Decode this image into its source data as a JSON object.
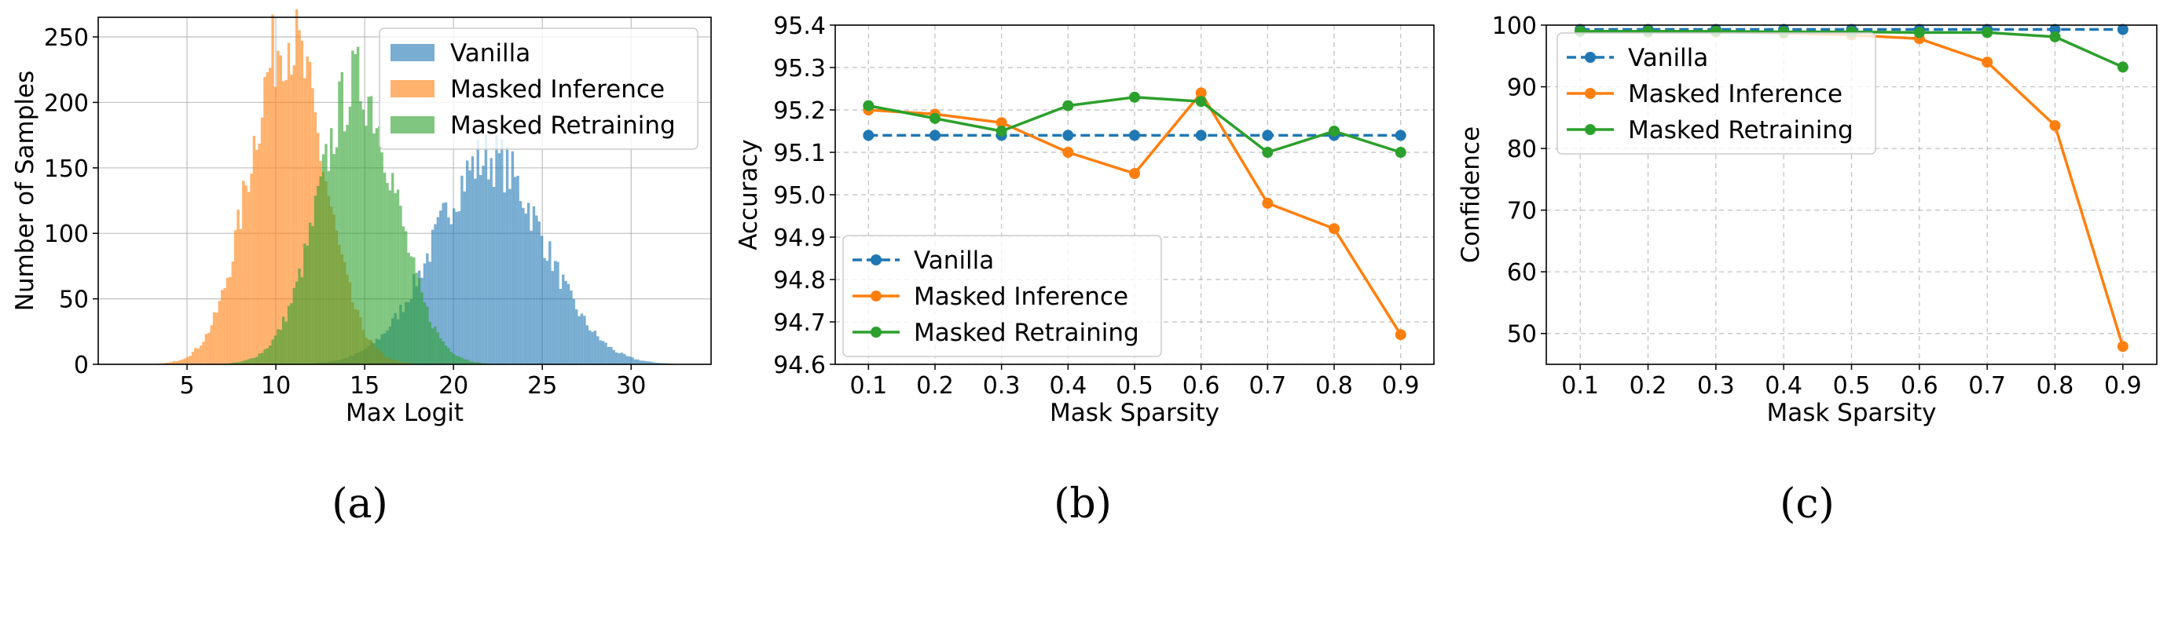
{
  "colors": {
    "blue": "#1f77b4",
    "orange": "#ff7f0e",
    "green": "#2ca02c",
    "grid": "#b0b0b0",
    "frame": "#000000"
  },
  "captions": [
    "(a)",
    "(b)",
    "(c)"
  ],
  "chart_data": [
    {
      "type": "histogram",
      "title": "",
      "xlabel": "Max Logit",
      "ylabel": "Number of Samples",
      "xlim": [
        0,
        34.5
      ],
      "ylim": [
        0,
        265
      ],
      "xticks": [
        5,
        10,
        15,
        20,
        25,
        30
      ],
      "yticks": [
        0,
        50,
        100,
        150,
        200,
        250
      ],
      "grid": true,
      "legend_position": "upper right",
      "bin_width": 0.15,
      "series": [
        {
          "name": "Vanilla",
          "color": "#1f77b4",
          "opacity": 0.6,
          "distribution": "approx-normal",
          "mean": 22.0,
          "std": 3.05,
          "peak": 158,
          "range": [
            4.5,
            33.0
          ]
        },
        {
          "name": "Masked Inference",
          "color": "#ff7f0e",
          "opacity": 0.6,
          "distribution": "approx-normal",
          "mean": 10.6,
          "std": 2.05,
          "peak": 252,
          "range": [
            1.5,
            18.5
          ]
        },
        {
          "name": "Masked Retraining",
          "color": "#2ca02c",
          "opacity": 0.6,
          "distribution": "approx-normal",
          "mean": 14.6,
          "std": 2.15,
          "peak": 215,
          "range": [
            3.0,
            25.0
          ]
        }
      ]
    },
    {
      "type": "line",
      "title": "",
      "xlabel": "Mask Sparsity",
      "ylabel": "Accuracy",
      "x": [
        0.1,
        0.2,
        0.3,
        0.4,
        0.5,
        0.6,
        0.7,
        0.8,
        0.9
      ],
      "xlim": [
        0.05,
        0.95
      ],
      "ylim": [
        94.6,
        95.4
      ],
      "yticks": [
        94.6,
        94.7,
        94.8,
        94.9,
        95.0,
        95.1,
        95.2,
        95.3,
        95.4
      ],
      "ytick_labels": [
        "94.6",
        "94.7",
        "94.8",
        "94.9",
        "95.0",
        "95.1",
        "95.2",
        "95.3",
        "95.4"
      ],
      "grid": true,
      "legend_position": "lower left",
      "series": [
        {
          "name": "Vanilla",
          "color": "#1f77b4",
          "dashed": true,
          "values": [
            95.14,
            95.14,
            95.14,
            95.14,
            95.14,
            95.14,
            95.14,
            95.14,
            95.14
          ]
        },
        {
          "name": "Masked Inference",
          "color": "#ff7f0e",
          "dashed": false,
          "values": [
            95.2,
            95.19,
            95.17,
            95.1,
            95.05,
            95.24,
            94.98,
            94.92,
            94.67
          ]
        },
        {
          "name": "Masked Retraining",
          "color": "#2ca02c",
          "dashed": false,
          "values": [
            95.21,
            95.18,
            95.15,
            95.21,
            95.23,
            95.22,
            95.1,
            95.15,
            95.1
          ]
        }
      ]
    },
    {
      "type": "line",
      "title": "",
      "xlabel": "Mask Sparsity",
      "ylabel": "Confidence",
      "x": [
        0.1,
        0.2,
        0.3,
        0.4,
        0.5,
        0.6,
        0.7,
        0.8,
        0.9
      ],
      "xlim": [
        0.05,
        0.95
      ],
      "ylim": [
        45,
        100
      ],
      "yticks": [
        50,
        60,
        70,
        80,
        90,
        100
      ],
      "ytick_labels": [
        "50",
        "60",
        "70",
        "80",
        "90",
        "100"
      ],
      "grid": true,
      "legend_position": "upper left",
      "series": [
        {
          "name": "Vanilla",
          "color": "#1f77b4",
          "dashed": true,
          "values": [
            99.3,
            99.3,
            99.3,
            99.3,
            99.3,
            99.3,
            99.3,
            99.3,
            99.3
          ]
        },
        {
          "name": "Masked Inference",
          "color": "#ff7f0e",
          "dashed": false,
          "values": [
            99.0,
            98.9,
            98.9,
            98.7,
            98.4,
            97.8,
            94.0,
            83.7,
            47.9
          ]
        },
        {
          "name": "Masked Retraining",
          "color": "#2ca02c",
          "dashed": false,
          "values": [
            99.0,
            99.0,
            99.0,
            98.9,
            98.9,
            98.8,
            98.8,
            98.1,
            93.2
          ]
        }
      ]
    }
  ]
}
